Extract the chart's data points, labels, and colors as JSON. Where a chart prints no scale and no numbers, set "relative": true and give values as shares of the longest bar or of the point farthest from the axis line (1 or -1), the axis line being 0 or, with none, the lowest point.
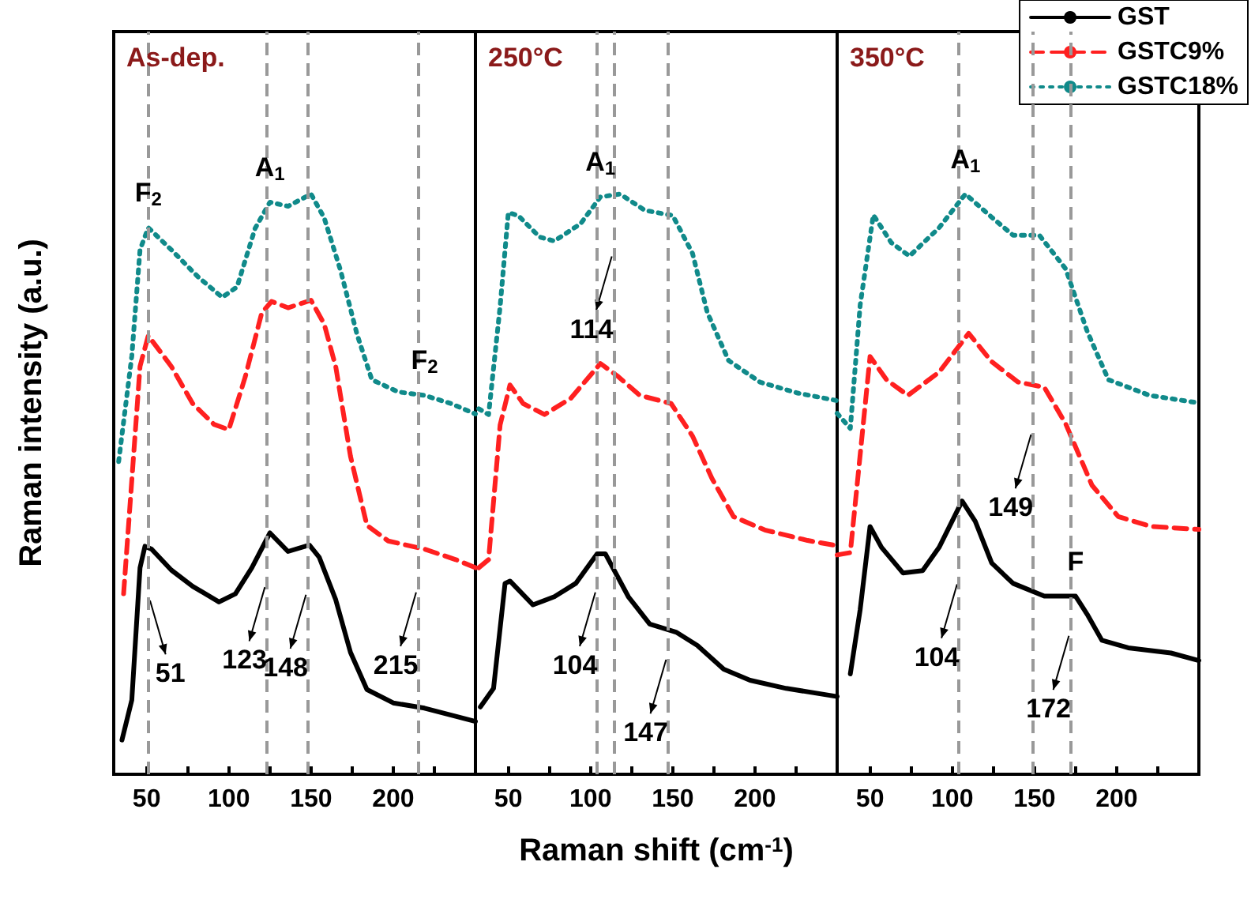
{
  "chart_data": [
    {
      "type": "line",
      "title": "As-dep.",
      "ylabel": "Raman intensity (a.u.)",
      "relative": true,
      "xlim": [
        30,
        250
      ],
      "xticks": [
        50,
        {
          "value": 75,
          "label": null
        },
        100,
        {
          "value": 125,
          "label": null
        },
        150,
        {
          "value": 175,
          "label": null
        },
        200,
        {
          "value": 225,
          "label": null
        }
      ],
      "grid": false,
      "legend": false,
      "marker": "none",
      "series": [
        {
          "color": "#000000",
          "line_style": "solid",
          "x": [
            35,
            41,
            46,
            49,
            53,
            65,
            78,
            94,
            104,
            114,
            125,
            136,
            149,
            155,
            165,
            174,
            184,
            200,
            219,
            238,
            250
          ],
          "values": [
            0.059,
            0.128,
            0.356,
            0.393,
            0.388,
            0.352,
            0.324,
            0.297,
            0.311,
            0.356,
            0.416,
            0.384,
            0.395,
            0.374,
            0.301,
            0.21,
            0.146,
            0.123,
            0.114,
            0.1,
            0.091
          ]
        },
        {
          "color": "#ff2020",
          "line_style": "dashed",
          "x": [
            36,
            46,
            51,
            65,
            78,
            91,
            100,
            110,
            120,
            126,
            136,
            150,
            158,
            165,
            174,
            184,
            197,
            219,
            238,
            250
          ],
          "values": [
            0.311,
            0.703,
            0.756,
            0.703,
            0.639,
            0.603,
            0.594,
            0.685,
            0.795,
            0.815,
            0.804,
            0.817,
            0.776,
            0.703,
            0.548,
            0.429,
            0.402,
            0.388,
            0.37,
            0.356
          ]
        },
        {
          "color": "#108a8a",
          "line_style": "dotted",
          "x": [
            33,
            41,
            46,
            51,
            65,
            81,
            96,
            105,
            116,
            125,
            136,
            150,
            158,
            168,
            178,
            187,
            203,
            219,
            235,
            250
          ],
          "values": [
            0.539,
            0.721,
            0.904,
            0.942,
            0.904,
            0.858,
            0.822,
            0.84,
            0.941,
            0.986,
            0.979,
            1,
            0.959,
            0.868,
            0.758,
            0.68,
            0.659,
            0.653,
            0.639,
            0.621
          ]
        }
      ],
      "ref_lines": [
        {
          "axis": "x",
          "value": 51,
          "color": "#999999",
          "line_style": "dashed"
        },
        {
          "axis": "x",
          "value": 123,
          "color": "#999999",
          "line_style": "dashed"
        },
        {
          "axis": "x",
          "value": 148,
          "color": "#999999",
          "line_style": "dashed"
        },
        {
          "axis": "x",
          "value": 215,
          "color": "#999999",
          "line_style": "dashed"
        }
      ],
      "annotations": [
        {
          "text": "F$_{2}$",
          "x": 51,
          "y": 0.942
        },
        {
          "text": "A$_{1}$",
          "x": 125,
          "y": 0.986
        },
        {
          "text": "F$_{2}$",
          "x": 219,
          "y": 0.653
        },
        {
          "text": "51",
          "x": 51,
          "y": 0.31
        },
        {
          "text": "123",
          "x": 123,
          "y": 0.333
        },
        {
          "text": "148",
          "x": 148,
          "y": 0.32
        },
        {
          "text": "215",
          "x": 215,
          "y": 0.324
        }
      ]
    },
    {
      "type": "line",
      "title": "250°C",
      "xlabel": "Raman shift (cm$^{-1}$)",
      "relative": true,
      "xlim": [
        30,
        250
      ],
      "xticks": [
        50,
        {
          "value": 75,
          "label": null
        },
        100,
        {
          "value": 125,
          "label": null
        },
        150,
        {
          "value": 175,
          "label": null
        },
        200,
        {
          "value": 225,
          "label": null
        }
      ],
      "grid": false,
      "legend": false,
      "marker": "none",
      "series": [
        {
          "color": "#000000",
          "line_style": "solid",
          "x": [
            33,
            41,
            48,
            51,
            65,
            78,
            91,
            104,
            109,
            123,
            136,
            152,
            165,
            181,
            197,
            219,
            250
          ],
          "values": [
            0.116,
            0.148,
            0.329,
            0.333,
            0.292,
            0.306,
            0.329,
            0.38,
            0.38,
            0.306,
            0.259,
            0.245,
            0.222,
            0.181,
            0.162,
            0.148,
            0.134
          ]
        },
        {
          "color": "#ff2020",
          "line_style": "dashed",
          "x": [
            32,
            38,
            45,
            51,
            59,
            72,
            88,
            106,
            117,
            130,
            149,
            162,
            174,
            187,
            206,
            232,
            250
          ],
          "values": [
            0.356,
            0.37,
            0.602,
            0.671,
            0.639,
            0.62,
            0.648,
            0.708,
            0.685,
            0.653,
            0.639,
            0.583,
            0.509,
            0.444,
            0.421,
            0.403,
            0.394
          ]
        },
        {
          "color": "#108a8a",
          "line_style": "dotted",
          "x": [
            32,
            38,
            45,
            50,
            56,
            69,
            78,
            94,
            106,
            118,
            133,
            150,
            162,
            171,
            184,
            203,
            226,
            250
          ],
          "values": [
            0.63,
            0.62,
            0.806,
            0.968,
            0.963,
            0.926,
            0.919,
            0.949,
            0.995,
            1,
            0.972,
            0.963,
            0.898,
            0.796,
            0.713,
            0.676,
            0.657,
            0.644
          ]
        }
      ],
      "ref_lines": [
        {
          "axis": "x",
          "value": 104,
          "color": "#999999",
          "line_style": "dashed"
        },
        {
          "axis": "x",
          "value": 114,
          "color": "#999999",
          "line_style": "dashed"
        },
        {
          "axis": "x",
          "value": 147,
          "color": "#999999",
          "line_style": "dashed"
        }
      ],
      "annotations": [
        {
          "text": "A$_{1}$",
          "x": 106,
          "y": 0.995
        },
        {
          "text": "114",
          "x": 114,
          "y": 0.903
        },
        {
          "text": "104",
          "x": 104,
          "y": 0.324
        },
        {
          "text": "147",
          "x": 147,
          "y": 0.208
        }
      ]
    },
    {
      "type": "line",
      "title": "350°C",
      "relative": true,
      "xlim": [
        30,
        250
      ],
      "xticks": [
        50,
        {
          "value": 75,
          "label": null
        },
        100,
        {
          "value": 125,
          "label": null
        },
        150,
        {
          "value": 175,
          "label": null
        },
        200,
        {
          "value": 225,
          "label": null
        }
      ],
      "grid": false,
      "legend": "top right",
      "marker": "none",
      "series": [
        {
          "name": "GST",
          "color": "#000000",
          "line_style": "solid",
          "x": [
            38,
            44,
            50,
            57,
            70,
            82,
            92,
            106,
            114,
            124,
            137,
            156,
            175,
            182,
            191,
            207,
            233,
            250
          ],
          "values": [
            0.173,
            0.284,
            0.427,
            0.391,
            0.347,
            0.351,
            0.391,
            0.471,
            0.436,
            0.364,
            0.329,
            0.307,
            0.307,
            0.276,
            0.231,
            0.218,
            0.209,
            0.196
          ]
        },
        {
          "name": "GSTC9%",
          "color": "#ff2020",
          "line_style": "dashed",
          "x": [
            30,
            38,
            44,
            50,
            60,
            73,
            92,
            110,
            124,
            140,
            156,
            169,
            185,
            201,
            221,
            250
          ],
          "values": [
            0.378,
            0.382,
            0.551,
            0.72,
            0.68,
            0.653,
            0.693,
            0.76,
            0.711,
            0.676,
            0.667,
            0.604,
            0.498,
            0.444,
            0.427,
            0.422
          ]
        },
        {
          "name": "GSTC18%",
          "color": "#108a8a",
          "line_style": "dotted",
          "x": [
            30,
            38,
            44,
            52,
            63,
            74,
            92,
            108,
            124,
            137,
            153,
            169,
            182,
            195,
            220,
            250
          ],
          "values": [
            0.622,
            0.596,
            0.809,
            0.964,
            0.916,
            0.893,
            0.942,
            1,
            0.96,
            0.929,
            0.929,
            0.871,
            0.764,
            0.68,
            0.653,
            0.64
          ]
        }
      ],
      "ref_lines": [
        {
          "axis": "x",
          "value": 104,
          "color": "#999999",
          "line_style": "dashed"
        },
        {
          "axis": "x",
          "value": 149,
          "color": "#999999",
          "line_style": "dashed"
        },
        {
          "axis": "x",
          "value": 172,
          "color": "#999999",
          "line_style": "dashed"
        }
      ],
      "annotations": [
        {
          "text": "A$_{1}$",
          "x": 108,
          "y": 1
        },
        {
          "text": "149",
          "x": 149,
          "y": 0.596
        },
        {
          "text": "104",
          "x": 104,
          "y": 0.338
        },
        {
          "text": "F",
          "x": 175,
          "y": 0.307
        },
        {
          "text": "172",
          "x": 172,
          "y": 0.249
        }
      ]
    }
  ]
}
